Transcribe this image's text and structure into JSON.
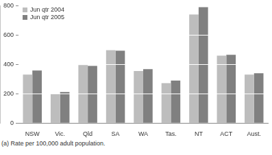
{
  "chart_data": {
    "type": "bar",
    "categories": [
      "NSW",
      "Vic.",
      "Qld",
      "SA",
      "WA",
      "Tas.",
      "NT",
      "ACT",
      "Aust."
    ],
    "series": [
      {
        "name": "Jun qtr 2004",
        "color": "#bdbdbd",
        "values": [
          330,
          200,
          395,
          497,
          355,
          272,
          740,
          460,
          330
        ]
      },
      {
        "name": "Jun qtr 2005",
        "color": "#808080",
        "values": [
          358,
          212,
          390,
          493,
          368,
          290,
          790,
          465,
          340
        ]
      }
    ],
    "ylim": [
      0,
      800
    ],
    "yticks": [
      0,
      200,
      400,
      600,
      800
    ],
    "grid": true,
    "legend": "upper left",
    "annotations": [
      "(a) Rate per 100,000 adult population."
    ]
  }
}
